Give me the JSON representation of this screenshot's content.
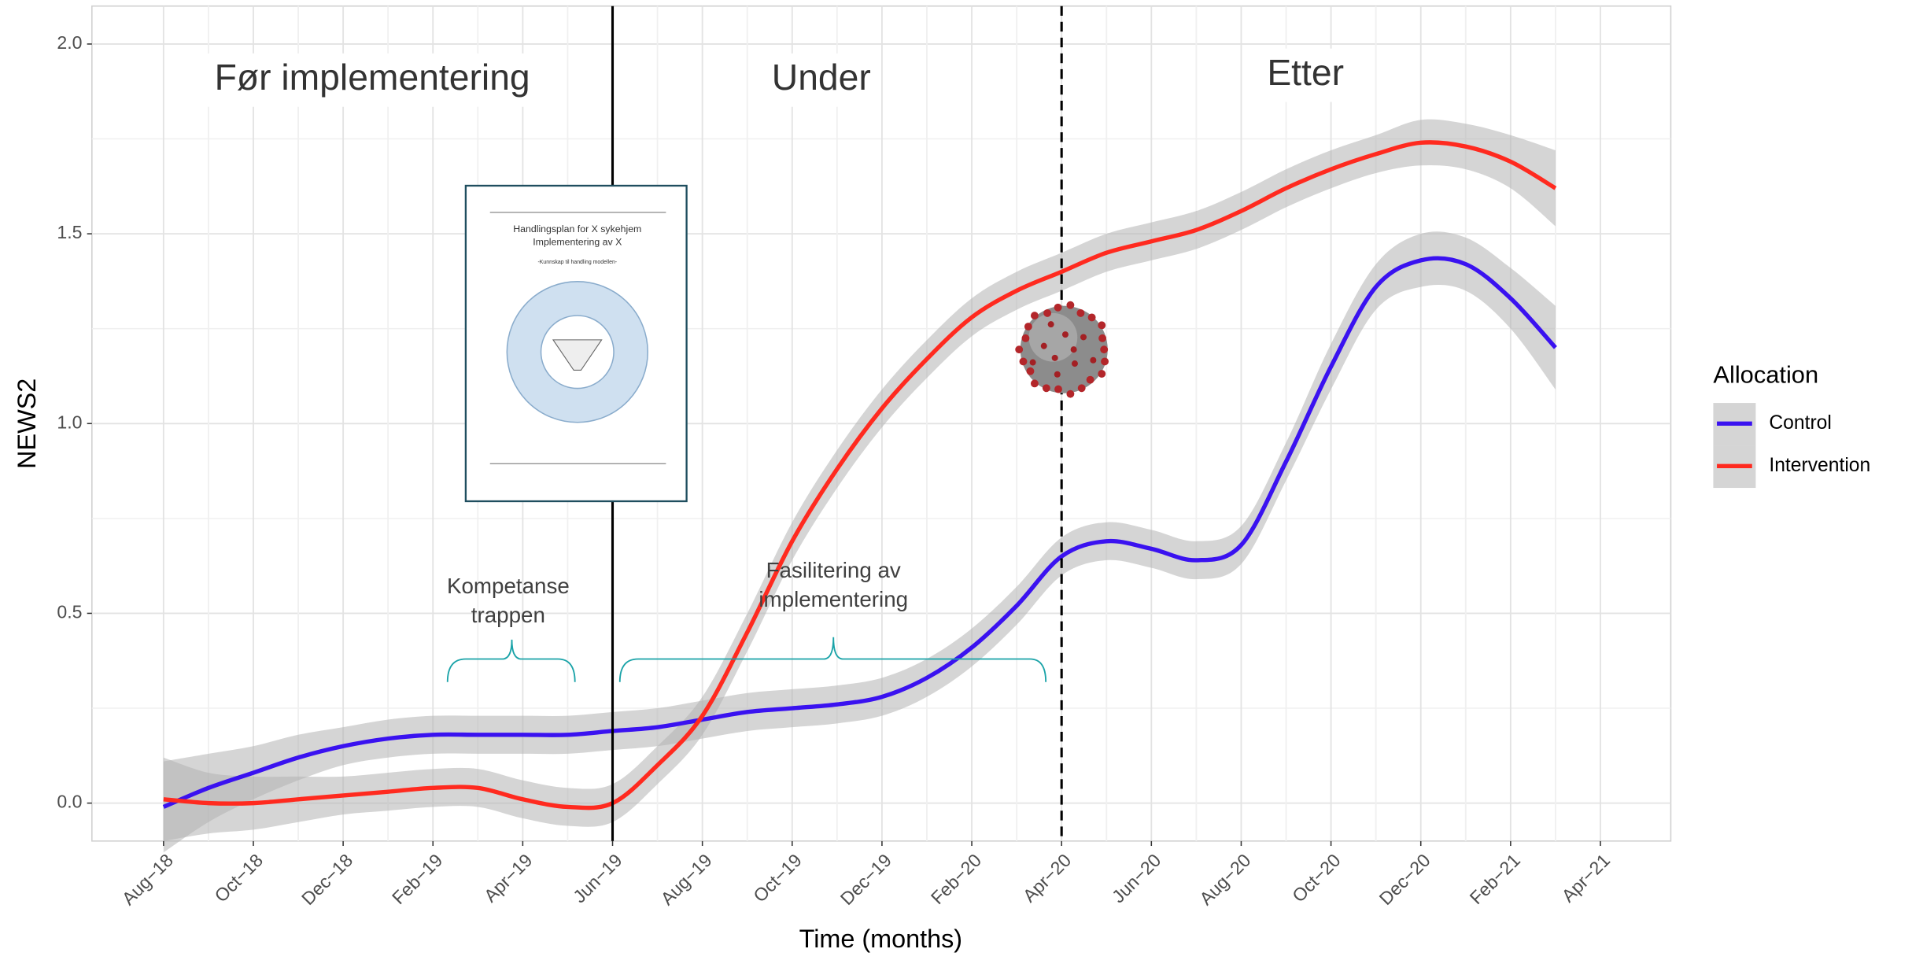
{
  "chart_data": {
    "type": "line",
    "x_label": "Time (months)",
    "y_label": "NEWS2",
    "categories": [
      "Aug−18",
      null,
      "Oct−18",
      null,
      "Dec−18",
      null,
      "Feb−19",
      null,
      "Apr−19",
      null,
      "Jun−19",
      null,
      "Aug−19",
      null,
      "Oct−19",
      null,
      "Dec−19",
      null,
      "Feb−20",
      null,
      "Apr−20",
      null,
      "Jun−20",
      null,
      "Aug−20",
      null,
      "Oct−20",
      null,
      "Dec−20",
      null,
      "Feb−21",
      null,
      "Apr−21"
    ],
    "ylim": [
      -0.1,
      2.1
    ],
    "yticks": [
      {
        "value": 0,
        "label": "0.0"
      },
      {
        "value": 0.5,
        "label": "0.5"
      },
      {
        "value": 1,
        "label": "1.0"
      },
      {
        "value": 1.5,
        "label": "1.5"
      },
      {
        "value": 2,
        "label": "2.0"
      }
    ],
    "grid": true,
    "band_color": "#b3b3b3",
    "legend": {
      "title": "Allocation",
      "position": "right"
    },
    "series": [
      {
        "name": "Control",
        "color": "#3a12f0",
        "values": [
          -0.01,
          0.04,
          0.08,
          0.12,
          0.15,
          0.17,
          0.18,
          0.18,
          0.18,
          0.18,
          0.19,
          0.2,
          0.22,
          0.24,
          0.25,
          0.26,
          0.28,
          0.33,
          0.41,
          0.52,
          0.65,
          0.69,
          0.67,
          0.64,
          0.68,
          0.9,
          1.15,
          1.36,
          1.43,
          1.42,
          1.33,
          1.2,
          null
        ],
        "lower": [
          -0.13,
          -0.05,
          0.01,
          0.06,
          0.1,
          0.12,
          0.13,
          0.13,
          0.13,
          0.13,
          0.14,
          0.15,
          0.17,
          0.19,
          0.2,
          0.21,
          0.23,
          0.28,
          0.36,
          0.47,
          0.6,
          0.64,
          0.62,
          0.59,
          0.63,
          0.85,
          1.09,
          1.3,
          1.36,
          1.35,
          1.25,
          1.09,
          null
        ],
        "upper": [
          0.11,
          0.13,
          0.15,
          0.18,
          0.2,
          0.22,
          0.23,
          0.23,
          0.23,
          0.23,
          0.24,
          0.25,
          0.27,
          0.29,
          0.3,
          0.31,
          0.33,
          0.38,
          0.46,
          0.57,
          0.7,
          0.74,
          0.72,
          0.69,
          0.73,
          0.95,
          1.21,
          1.42,
          1.5,
          1.49,
          1.41,
          1.31,
          null
        ]
      },
      {
        "name": "Intervention",
        "color": "#ff2a1f",
        "values": [
          0.01,
          0.0,
          0.0,
          0.01,
          0.02,
          0.03,
          0.04,
          0.04,
          0.01,
          -0.01,
          0.0,
          0.1,
          0.23,
          0.45,
          0.69,
          0.88,
          1.04,
          1.17,
          1.28,
          1.35,
          1.4,
          1.45,
          1.48,
          1.51,
          1.56,
          1.62,
          1.67,
          1.71,
          1.74,
          1.73,
          1.69,
          1.62,
          null
        ],
        "lower": [
          -0.1,
          -0.08,
          -0.07,
          -0.05,
          -0.03,
          -0.02,
          -0.01,
          -0.01,
          -0.04,
          -0.06,
          -0.05,
          0.05,
          0.18,
          0.4,
          0.64,
          0.83,
          0.99,
          1.12,
          1.23,
          1.3,
          1.35,
          1.4,
          1.43,
          1.46,
          1.51,
          1.57,
          1.62,
          1.66,
          1.68,
          1.67,
          1.62,
          1.52,
          null
        ],
        "upper": [
          0.12,
          0.08,
          0.07,
          0.07,
          0.07,
          0.08,
          0.09,
          0.09,
          0.06,
          0.04,
          0.05,
          0.15,
          0.28,
          0.5,
          0.74,
          0.93,
          1.09,
          1.22,
          1.33,
          1.4,
          1.45,
          1.5,
          1.53,
          1.56,
          1.61,
          1.67,
          1.72,
          1.76,
          1.8,
          1.79,
          1.76,
          1.72,
          null
        ]
      }
    ],
    "vlines": [
      {
        "at": "Jun−19",
        "style": "solid"
      },
      {
        "at": "Apr−20",
        "style": "dashed"
      }
    ],
    "regions": [
      "Før implementering",
      "Under",
      "Etter"
    ],
    "notes": [
      [
        "Kompetanse",
        "trappen"
      ],
      [
        "Fasilitering av",
        "implementering"
      ]
    ],
    "inset_document": [
      "Handlingsplan for X sykehjem",
      "Implementering av X",
      "-Kunnskap til handling modellen-"
    ]
  }
}
